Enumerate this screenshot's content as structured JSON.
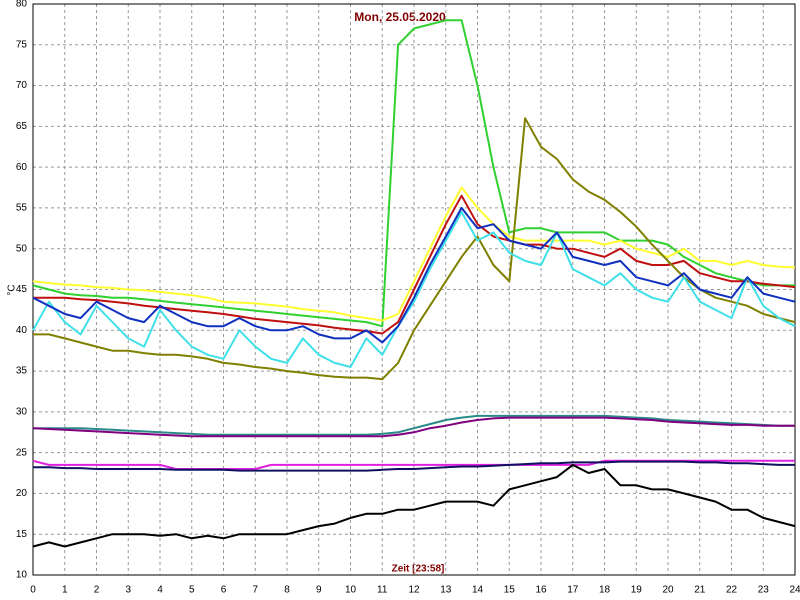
{
  "chart_data": {
    "type": "line",
    "title": "Mon, 25.05.2020",
    "xlabel": "Zeit [23:58]",
    "ylabel": "°C",
    "xlim": [
      0,
      24
    ],
    "ylim": [
      10,
      80
    ],
    "xticks": [
      0,
      1,
      2,
      3,
      4,
      5,
      6,
      7,
      8,
      9,
      10,
      11,
      12,
      13,
      14,
      15,
      16,
      17,
      18,
      19,
      20,
      21,
      22,
      23,
      24
    ],
    "yticks": [
      10,
      15,
      20,
      25,
      30,
      35,
      40,
      45,
      50,
      55,
      60,
      65,
      70,
      75,
      80
    ],
    "grid": true,
    "x": [
      0,
      0.5,
      1,
      1.5,
      2,
      2.5,
      3,
      3.5,
      4,
      4.5,
      5,
      5.5,
      6,
      6.5,
      7,
      7.5,
      8,
      8.5,
      9,
      9.5,
      10,
      10.5,
      11,
      11.5,
      12,
      12.5,
      13,
      13.5,
      14,
      14.5,
      15,
      15.5,
      16,
      16.5,
      17,
      17.5,
      18,
      18.5,
      19,
      19.5,
      20,
      20.5,
      21,
      21.5,
      22,
      22.5,
      23,
      23.5,
      24
    ],
    "series": [
      {
        "color": "#30d030",
        "values": [
          45.5,
          45,
          44.5,
          44.3,
          44.2,
          44,
          44,
          43.8,
          43.6,
          43.4,
          43.2,
          43,
          42.8,
          42.6,
          42.4,
          42.2,
          42,
          41.8,
          41.6,
          41.4,
          41.2,
          41,
          40.5,
          75,
          77,
          77.5,
          78,
          78,
          70,
          60,
          52,
          52.5,
          52.5,
          52,
          52,
          52,
          52,
          51,
          51,
          51,
          50.5,
          49,
          48,
          47,
          46.5,
          46,
          45.5,
          45.5,
          45.5
        ]
      },
      {
        "color": "#ffff30",
        "values": [
          46,
          45.8,
          45.6,
          45.5,
          45.3,
          45.2,
          45,
          44.9,
          44.7,
          44.5,
          44.3,
          44,
          43.5,
          43.4,
          43.3,
          43.1,
          42.9,
          42.6,
          42.4,
          42.2,
          41.8,
          41.5,
          41.2,
          42,
          46,
          50,
          54,
          57.5,
          55,
          53,
          51.5,
          51,
          51,
          51,
          51,
          51,
          50.5,
          51,
          50,
          49.5,
          49,
          50,
          48.5,
          48.5,
          48,
          48.5,
          48,
          47.8,
          47.7
        ]
      },
      {
        "color": "#c01010",
        "values": [
          44,
          44,
          44,
          43.8,
          43.7,
          43.5,
          43.3,
          43,
          42.8,
          42.6,
          42.4,
          42.2,
          42,
          41.7,
          41.4,
          41.2,
          41,
          40.8,
          40.6,
          40.3,
          40.1,
          39.9,
          39.6,
          41,
          45,
          49,
          53,
          56.5,
          53,
          51.5,
          51,
          50.5,
          50.5,
          50,
          50,
          49.5,
          49,
          50,
          48.5,
          48,
          48,
          48.5,
          47,
          46.5,
          46,
          46,
          45.7,
          45.5,
          45.3
        ]
      },
      {
        "color": "#808000",
        "values": [
          39.5,
          39.5,
          39,
          38.5,
          38,
          37.5,
          37.5,
          37.2,
          37,
          37,
          36.8,
          36.5,
          36,
          35.8,
          35.5,
          35.3,
          35,
          34.8,
          34.5,
          34.3,
          34.2,
          34.2,
          34,
          36,
          40,
          43,
          46,
          49,
          51.5,
          48,
          46,
          66,
          62.5,
          61,
          58.5,
          57,
          56,
          54.5,
          52.7,
          50.5,
          48.5,
          46.5,
          45,
          44,
          43.5,
          43,
          42,
          41.5,
          41
        ]
      },
      {
        "color": "#40e0e8",
        "values": [
          40,
          43.5,
          41,
          39.5,
          43,
          41,
          39,
          38,
          42.5,
          40,
          38,
          37,
          36.5,
          40,
          38,
          36.5,
          36,
          39,
          37,
          36,
          35.5,
          39,
          37,
          40.5,
          43.5,
          47.5,
          51,
          54.5,
          51,
          52,
          49.5,
          48.5,
          48,
          52,
          47.5,
          46.5,
          45.5,
          47,
          45,
          44,
          43.5,
          46.5,
          43.5,
          42.5,
          41.5,
          46.5,
          43,
          41.5,
          40.5
        ]
      },
      {
        "color": "#1030c0",
        "values": [
          44,
          43,
          42,
          41.5,
          43.5,
          42.5,
          41.5,
          41,
          43,
          42,
          41,
          40.5,
          40.5,
          41.5,
          40.5,
          40,
          40,
          40.5,
          39.5,
          39,
          39,
          40,
          38.5,
          40.5,
          44,
          48,
          51.5,
          55,
          52.5,
          53,
          51,
          50.5,
          50,
          52,
          49,
          48.5,
          48,
          48.5,
          46.5,
          46,
          45.5,
          47,
          45,
          44.5,
          44,
          46.5,
          44.5,
          44,
          43.5
        ]
      },
      {
        "color": "#2a8a8a",
        "values": [
          28,
          28,
          28,
          28,
          27.9,
          27.8,
          27.7,
          27.6,
          27.5,
          27.4,
          27.3,
          27.2,
          27.2,
          27.2,
          27.2,
          27.2,
          27.2,
          27.2,
          27.2,
          27.2,
          27.2,
          27.2,
          27.3,
          27.5,
          28,
          28.5,
          29,
          29.3,
          29.5,
          29.5,
          29.5,
          29.5,
          29.5,
          29.5,
          29.5,
          29.5,
          29.5,
          29.4,
          29.3,
          29.2,
          29,
          28.9,
          28.8,
          28.7,
          28.6,
          28.5,
          28.4,
          28.3,
          28.3
        ]
      },
      {
        "color": "#800080",
        "values": [
          28,
          27.9,
          27.8,
          27.7,
          27.6,
          27.5,
          27.4,
          27.3,
          27.2,
          27.1,
          27,
          27,
          27,
          27,
          27,
          27,
          27,
          27,
          27,
          27,
          27,
          27,
          27,
          27.2,
          27.5,
          28,
          28.3,
          28.7,
          29,
          29.2,
          29.3,
          29.3,
          29.3,
          29.3,
          29.3,
          29.3,
          29.3,
          29.2,
          29.1,
          29,
          28.8,
          28.7,
          28.6,
          28.5,
          28.4,
          28.4,
          28.3,
          28.3,
          28.3
        ]
      },
      {
        "color": "#e020e0",
        "values": [
          24,
          23.5,
          23.5,
          23.5,
          23.5,
          23.5,
          23.5,
          23.5,
          23.5,
          23,
          23,
          23,
          23,
          23,
          23,
          23.5,
          23.5,
          23.5,
          23.5,
          23.5,
          23.5,
          23.5,
          23.5,
          23.5,
          23.5,
          23.5,
          23.5,
          23.5,
          23.5,
          23.5,
          23.5,
          23.5,
          23.5,
          23.5,
          23.5,
          23.5,
          24,
          24,
          24,
          24,
          24,
          24,
          24,
          24,
          24,
          24,
          24,
          24,
          24
        ]
      },
      {
        "color": "#101060",
        "values": [
          23.2,
          23.2,
          23.1,
          23.1,
          23,
          23,
          23,
          23,
          23,
          22.9,
          22.9,
          22.9,
          22.9,
          22.8,
          22.8,
          22.8,
          22.8,
          22.8,
          22.8,
          22.8,
          22.8,
          22.8,
          22.9,
          23,
          23,
          23.1,
          23.2,
          23.3,
          23.3,
          23.4,
          23.5,
          23.6,
          23.7,
          23.7,
          23.8,
          23.8,
          23.8,
          23.9,
          23.9,
          23.9,
          23.9,
          23.9,
          23.8,
          23.8,
          23.7,
          23.7,
          23.6,
          23.5,
          23.5
        ]
      },
      {
        "color": "#000000",
        "values": [
          13.5,
          14,
          13.5,
          14,
          14.5,
          15,
          15,
          15,
          14.8,
          15,
          14.5,
          14.8,
          14.5,
          15,
          15,
          15,
          15,
          15.5,
          16,
          16.3,
          17,
          17.5,
          17.5,
          18,
          18,
          18.5,
          19,
          19,
          19,
          18.5,
          20.5,
          21,
          21.5,
          22,
          23.5,
          22.5,
          23,
          21,
          21,
          20.5,
          20.5,
          20,
          19.5,
          19,
          18,
          18,
          17,
          16.5,
          16
        ]
      }
    ]
  }
}
